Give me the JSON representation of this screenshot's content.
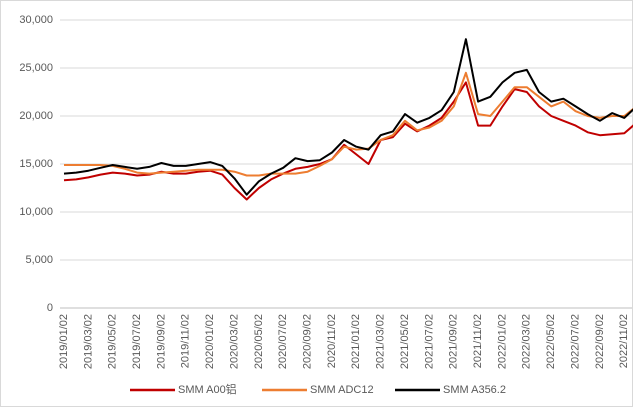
{
  "chart_data": {
    "type": "line",
    "categories": [
      "2019/01/02",
      null,
      "2019/03/02",
      null,
      "2019/05/02",
      null,
      "2019/07/02",
      null,
      "2019/09/02",
      null,
      "2019/11/02",
      null,
      "2020/01/02",
      null,
      "2020/03/02",
      null,
      "2020/05/02",
      null,
      "2020/07/02",
      null,
      "2020/09/02",
      null,
      "2020/11/02",
      null,
      "2021/01/02",
      null,
      "2021/03/02",
      null,
      "2021/05/02",
      null,
      "2021/07/02",
      null,
      "2021/09/02",
      null,
      "2021/11/02",
      null,
      "2022/01/02",
      null,
      "2022/03/02",
      null,
      "2022/05/02",
      null,
      "2022/07/02",
      null,
      "2022/09/02",
      null,
      "2022/11/02",
      null
    ],
    "series": [
      {
        "name": "SMM A00铝",
        "color": "#c00000",
        "values": [
          13300,
          13400,
          13600,
          13900,
          14100,
          14000,
          13800,
          13900,
          14200,
          14000,
          14000,
          14200,
          14300,
          13900,
          12500,
          11300,
          12500,
          13400,
          14000,
          14500,
          14700,
          15000,
          15500,
          17000,
          16000,
          15000,
          17500,
          17800,
          19200,
          18400,
          19000,
          19800,
          21500,
          23500,
          19000,
          19000,
          21000,
          22800,
          22500,
          21000,
          20000,
          19500,
          19000,
          18300,
          18000,
          18100,
          18200,
          19300
        ]
      },
      {
        "name": "SMM ADC12",
        "color": "#ed7d31",
        "values": [
          14900,
          14900,
          14900,
          14900,
          14800,
          14500,
          14100,
          14000,
          14100,
          14200,
          14300,
          14400,
          14400,
          14400,
          14200,
          13800,
          13800,
          14000,
          14000,
          14000,
          14200,
          14800,
          15500,
          16800,
          16500,
          16600,
          17500,
          18000,
          19500,
          18500,
          18800,
          19500,
          21000,
          24500,
          20200,
          20000,
          21500,
          23000,
          23000,
          22000,
          21000,
          21500,
          20500,
          20000,
          19800,
          20000,
          20000,
          21000
        ]
      },
      {
        "name": "SMM A356.2",
        "color": "#000000",
        "values": [
          14000,
          14100,
          14300,
          14600,
          14900,
          14700,
          14500,
          14700,
          15100,
          14800,
          14800,
          15000,
          15200,
          14800,
          13500,
          11800,
          13200,
          14000,
          14600,
          15600,
          15300,
          15400,
          16200,
          17500,
          16800,
          16500,
          18000,
          18400,
          20200,
          19300,
          19800,
          20600,
          22500,
          28000,
          21500,
          22000,
          23500,
          24500,
          24800,
          22500,
          21500,
          21800,
          21000,
          20200,
          19500,
          20300,
          19800,
          21000
        ]
      }
    ],
    "ylim": [
      0,
      30000
    ],
    "yticks": [
      {
        "value": 0,
        "label": "0"
      },
      {
        "value": 5000,
        "label": "5,000"
      },
      {
        "value": 10000,
        "label": "10,000"
      },
      {
        "value": 15000,
        "label": "15,000"
      },
      {
        "value": 20000,
        "label": "20,000"
      },
      {
        "value": 25000,
        "label": "25,000"
      },
      {
        "value": 30000,
        "label": "30,000"
      }
    ],
    "grid": true
  }
}
